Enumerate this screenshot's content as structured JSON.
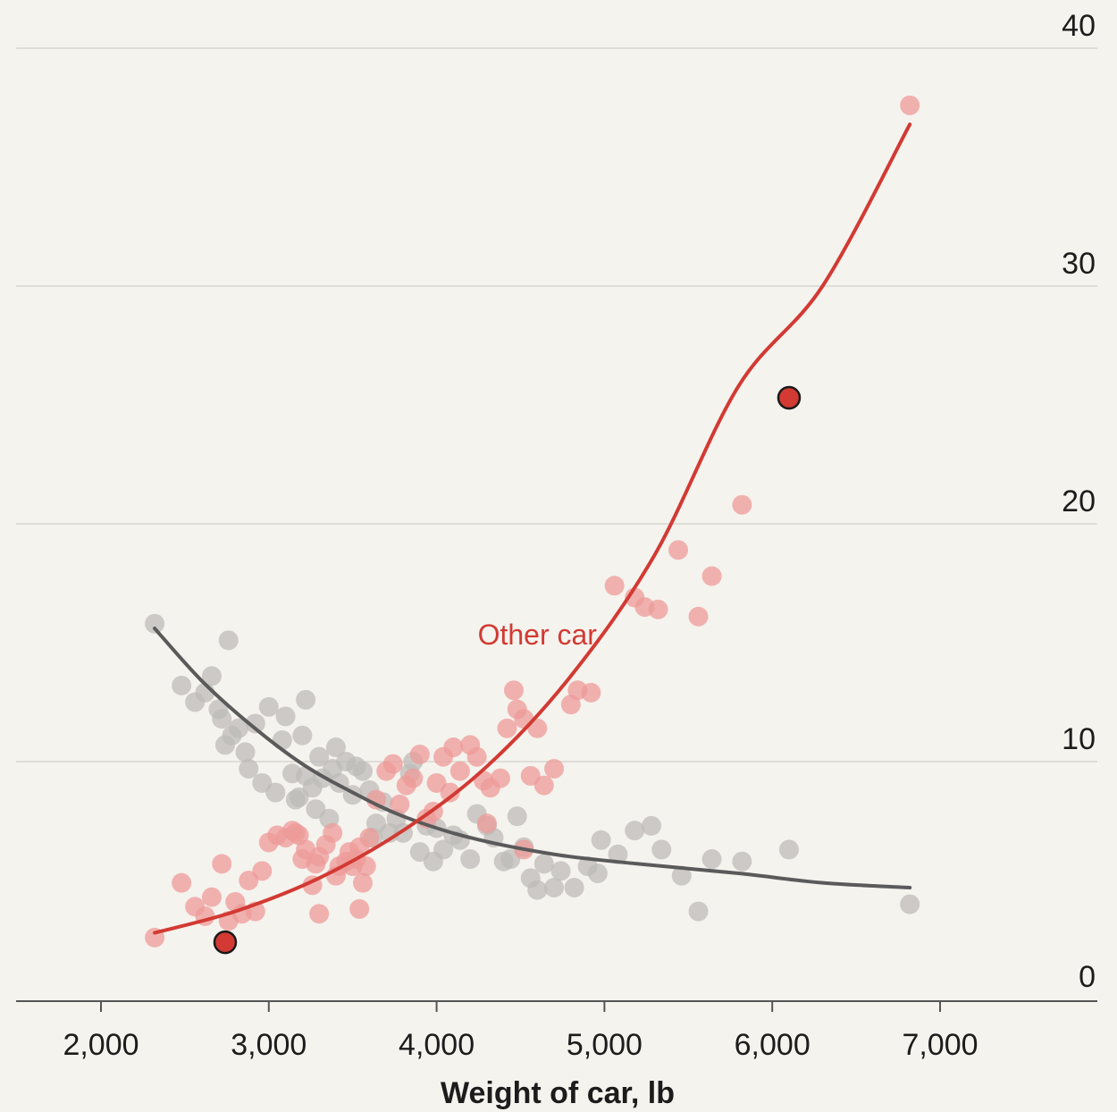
{
  "chart_data": {
    "type": "scatter",
    "title": "",
    "xlabel": "Weight of car, lb",
    "ylabel": "",
    "xlim": [
      1500,
      7800
    ],
    "ylim": [
      0,
      40
    ],
    "xticks": [
      2000,
      3000,
      4000,
      5000,
      6000,
      7000
    ],
    "xtick_labels": [
      "2,000",
      "3,000",
      "4,000",
      "5,000",
      "6,000",
      "7,000"
    ],
    "yticks": [
      0,
      10,
      20,
      30,
      40
    ],
    "ytick_labels": [
      "0",
      "10",
      "20",
      "30",
      "40"
    ],
    "grid": true,
    "series": [
      {
        "name": "Other car",
        "color": "#d23a33",
        "point_color": "#ee9b98",
        "label_at": [
          4600,
          15.3
        ],
        "points": [
          [
            2320,
            2.6
          ],
          [
            2480,
            4.9
          ],
          [
            2560,
            3.9
          ],
          [
            2620,
            3.5
          ],
          [
            2660,
            4.3
          ],
          [
            2720,
            5.7
          ],
          [
            2760,
            3.3
          ],
          [
            2800,
            4.1
          ],
          [
            2840,
            3.6
          ],
          [
            2880,
            5.0
          ],
          [
            2920,
            3.7
          ],
          [
            2960,
            5.4
          ],
          [
            3000,
            6.6
          ],
          [
            3050,
            6.9
          ],
          [
            3100,
            6.8
          ],
          [
            3140,
            7.1
          ],
          [
            3160,
            7.0
          ],
          [
            3200,
            5.9
          ],
          [
            3220,
            6.3
          ],
          [
            3260,
            4.8
          ],
          [
            3280,
            5.7
          ],
          [
            3300,
            6.0
          ],
          [
            3340,
            6.5
          ],
          [
            3380,
            7.0
          ],
          [
            3400,
            5.2
          ],
          [
            3420,
            5.6
          ],
          [
            3460,
            5.8
          ],
          [
            3480,
            6.2
          ],
          [
            3500,
            5.6
          ],
          [
            3520,
            5.9
          ],
          [
            3540,
            6.4
          ],
          [
            3560,
            4.9
          ],
          [
            3580,
            5.6
          ],
          [
            3600,
            6.8
          ],
          [
            3640,
            8.4
          ],
          [
            3700,
            9.6
          ],
          [
            3740,
            9.9
          ],
          [
            3780,
            8.2
          ],
          [
            3820,
            9.0
          ],
          [
            3860,
            9.3
          ],
          [
            3900,
            10.3
          ],
          [
            3940,
            7.6
          ],
          [
            3980,
            7.9
          ],
          [
            4000,
            9.1
          ],
          [
            4040,
            10.2
          ],
          [
            4080,
            8.7
          ],
          [
            4100,
            10.6
          ],
          [
            4140,
            9.6
          ],
          [
            4200,
            10.7
          ],
          [
            4240,
            10.2
          ],
          [
            4280,
            9.2
          ],
          [
            4320,
            8.9
          ],
          [
            4380,
            9.3
          ],
          [
            4420,
            11.4
          ],
          [
            4460,
            13.0
          ],
          [
            4480,
            12.2
          ],
          [
            4520,
            11.8
          ],
          [
            4560,
            9.4
          ],
          [
            4600,
            11.4
          ],
          [
            4640,
            9.0
          ],
          [
            4700,
            9.7
          ],
          [
            4800,
            12.4
          ],
          [
            4840,
            13.0
          ],
          [
            4920,
            12.9
          ],
          [
            5060,
            17.4
          ],
          [
            5180,
            16.9
          ],
          [
            5240,
            16.5
          ],
          [
            5320,
            16.4
          ],
          [
            5440,
            18.9
          ],
          [
            5560,
            16.1
          ],
          [
            5640,
            17.8
          ],
          [
            5820,
            20.8
          ],
          [
            6820,
            37.6
          ],
          [
            3540,
            3.8
          ],
          [
            3300,
            3.6
          ],
          [
            3180,
            6.9
          ],
          [
            4520,
            6.3
          ],
          [
            4300,
            7.4
          ]
        ],
        "curve": [
          [
            2320,
            2.8
          ],
          [
            2800,
            3.7
          ],
          [
            3300,
            5.1
          ],
          [
            3800,
            7.1
          ],
          [
            4300,
            9.8
          ],
          [
            4800,
            13.6
          ],
          [
            5300,
            18.7
          ],
          [
            5800,
            25.8
          ],
          [
            6300,
            30.0
          ],
          [
            6820,
            36.8
          ]
        ],
        "highlight": [
          [
            2740,
            2.4
          ],
          [
            6100,
            25.3
          ]
        ]
      },
      {
        "name": "",
        "color": "#5a5a5a",
        "point_color": "#bdbbb8",
        "points": [
          [
            2320,
            15.8
          ],
          [
            2480,
            13.2
          ],
          [
            2560,
            12.5
          ],
          [
            2620,
            12.9
          ],
          [
            2660,
            13.6
          ],
          [
            2700,
            12.2
          ],
          [
            2720,
            11.8
          ],
          [
            2740,
            10.7
          ],
          [
            2760,
            15.1
          ],
          [
            2780,
            11.1
          ],
          [
            2820,
            11.4
          ],
          [
            2860,
            10.4
          ],
          [
            2880,
            9.7
          ],
          [
            2920,
            11.6
          ],
          [
            2960,
            9.1
          ],
          [
            3000,
            12.3
          ],
          [
            3040,
            8.7
          ],
          [
            3080,
            10.9
          ],
          [
            3100,
            11.9
          ],
          [
            3140,
            9.5
          ],
          [
            3180,
            8.5
          ],
          [
            3200,
            11.1
          ],
          [
            3220,
            12.6
          ],
          [
            3260,
            8.9
          ],
          [
            3280,
            8.0
          ],
          [
            3300,
            10.2
          ],
          [
            3320,
            9.3
          ],
          [
            3360,
            7.6
          ],
          [
            3400,
            10.6
          ],
          [
            3420,
            9.1
          ],
          [
            3460,
            10.0
          ],
          [
            3500,
            8.6
          ],
          [
            3520,
            9.8
          ],
          [
            3560,
            9.6
          ],
          [
            3600,
            8.8
          ],
          [
            3640,
            7.4
          ],
          [
            3680,
            8.3
          ],
          [
            3720,
            7.0
          ],
          [
            3760,
            7.6
          ],
          [
            3800,
            7.0
          ],
          [
            3840,
            9.5
          ],
          [
            3860,
            10.0
          ],
          [
            3900,
            6.2
          ],
          [
            3940,
            7.3
          ],
          [
            3980,
            5.8
          ],
          [
            4000,
            7.2
          ],
          [
            4040,
            6.3
          ],
          [
            4100,
            6.9
          ],
          [
            4140,
            6.7
          ],
          [
            4200,
            5.9
          ],
          [
            4240,
            7.8
          ],
          [
            4300,
            7.3
          ],
          [
            4340,
            6.8
          ],
          [
            4400,
            5.8
          ],
          [
            4440,
            5.9
          ],
          [
            4480,
            7.7
          ],
          [
            4520,
            6.4
          ],
          [
            4560,
            5.1
          ],
          [
            4600,
            4.6
          ],
          [
            4640,
            5.7
          ],
          [
            4700,
            4.7
          ],
          [
            4740,
            5.4
          ],
          [
            4820,
            4.7
          ],
          [
            4900,
            5.6
          ],
          [
            4960,
            5.3
          ],
          [
            4980,
            6.7
          ],
          [
            5080,
            6.1
          ],
          [
            5180,
            7.1
          ],
          [
            5280,
            7.3
          ],
          [
            5340,
            6.3
          ],
          [
            5460,
            5.2
          ],
          [
            5560,
            3.7
          ],
          [
            5640,
            5.9
          ],
          [
            5820,
            5.8
          ],
          [
            6100,
            6.3
          ],
          [
            6820,
            4.0
          ],
          [
            3380,
            9.7
          ],
          [
            3220,
            9.4
          ],
          [
            3160,
            8.4
          ],
          [
            3620,
            6.8
          ]
        ],
        "curve": [
          [
            2320,
            15.6
          ],
          [
            2600,
            13.4
          ],
          [
            2900,
            11.5
          ],
          [
            3200,
            9.9
          ],
          [
            3500,
            8.7
          ],
          [
            3800,
            7.7
          ],
          [
            4200,
            6.8
          ],
          [
            4700,
            6.1
          ],
          [
            5200,
            5.7
          ],
          [
            5800,
            5.3
          ],
          [
            6300,
            4.9
          ],
          [
            6820,
            4.7
          ]
        ]
      }
    ]
  }
}
